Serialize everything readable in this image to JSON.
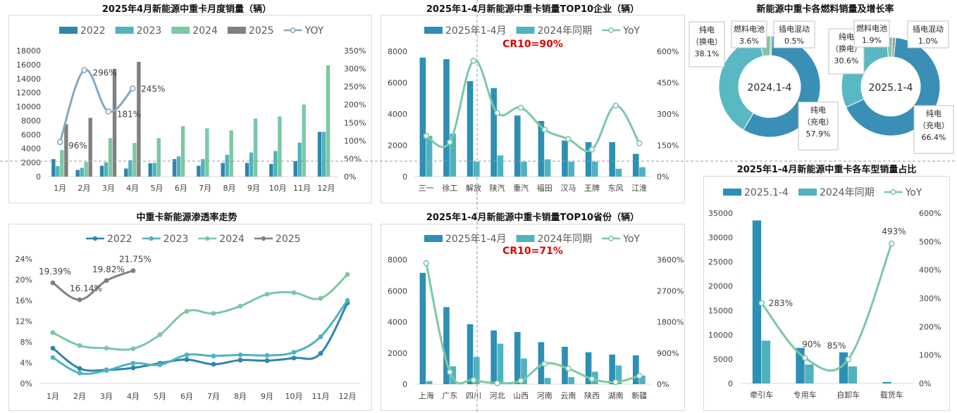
{
  "chart_data": [
    {
      "id": "monthly",
      "type": "bar",
      "title": "2025年4月新能源中重卡月度销量（辆）",
      "categories": [
        "1月",
        "2月",
        "3月",
        "4月",
        "5月",
        "6月",
        "7月",
        "8月",
        "9月",
        "10月",
        "11月",
        "12月"
      ],
      "series": [
        {
          "name": "2022",
          "color": "#2e86ab",
          "values": [
            2500,
            950,
            1550,
            1150,
            1900,
            2500,
            1550,
            1950,
            1950,
            1800,
            2200,
            6400
          ]
        },
        {
          "name": "2023",
          "color": "#4fb3bf",
          "values": [
            1500,
            1250,
            2050,
            2350,
            1950,
            2900,
            2500,
            3100,
            3450,
            3650,
            4850,
            6400
          ]
        },
        {
          "name": "2024",
          "color": "#7cc8a3",
          "values": [
            3800,
            2100,
            5500,
            4800,
            5500,
            7200,
            6900,
            6600,
            8300,
            8600,
            10300,
            15900
          ]
        },
        {
          "name": "2025",
          "color": "#808080",
          "values": [
            7500,
            8400,
            15400,
            16400,
            null,
            null,
            null,
            null,
            null,
            null,
            null,
            null
          ]
        }
      ],
      "yoy": {
        "name": "YOY",
        "color": "#82a9c4",
        "values": [
          96,
          296,
          181,
          245
        ],
        "labels": [
          "96%",
          "296%",
          "181%",
          "245%"
        ]
      },
      "ylim": [
        0,
        18000
      ],
      "yticks": [
        0,
        2000,
        4000,
        6000,
        8000,
        10000,
        12000,
        14000,
        16000,
        18000
      ],
      "y2lim": [
        0,
        350
      ],
      "y2ticks": [
        "0%",
        "50%",
        "100%",
        "150%",
        "200%",
        "250%",
        "300%",
        "350%"
      ],
      "legend": "top"
    },
    {
      "id": "top10-companies",
      "type": "bar",
      "title": "2025年1-4月新能源中重卡销量TOP10企业（辆）",
      "annotation": "CR10=90%",
      "categories": [
        "三一",
        "徐工",
        "解放",
        "陕汽",
        "重汽",
        "福田",
        "汉马",
        "王牌",
        "东风",
        "江淮"
      ],
      "series": [
        {
          "name": "2025年1-4月",
          "color": "#2e8fb5",
          "values": [
            7600,
            7500,
            6100,
            5650,
            3900,
            3550,
            2300,
            2200,
            2200,
            1450
          ]
        },
        {
          "name": "2024年同期",
          "color": "#4fb3bf",
          "values": [
            2600,
            2750,
            950,
            1350,
            950,
            1100,
            950,
            950,
            500,
            600
          ]
        }
      ],
      "yoy": {
        "name": "YoY",
        "color": "#7cc8a3",
        "values": [
          195,
          165,
          555,
          305,
          330,
          225,
          180,
          130,
          340,
          160
        ]
      },
      "ylim": [
        0,
        8000
      ],
      "yticks": [
        0,
        2000,
        4000,
        6000,
        8000
      ],
      "y2lim": [
        0,
        600
      ],
      "y2ticks": [
        "0%",
        "150%",
        "300%",
        "450%",
        "600%"
      ],
      "legend": "top"
    },
    {
      "id": "fuel-share",
      "type": "pie",
      "title": "新能源中重卡各燃料销量及增长率",
      "charts": [
        {
          "center": "2024.1-4",
          "slices": [
            {
              "name": "纯电（充电）",
              "line1": "纯电",
              "line2": "（充电）",
              "value": 57.9,
              "pct": "57.9%",
              "color": "#3a8fb7"
            },
            {
              "name": "纯电（换电）",
              "line1": "纯电",
              "line2": "（换电）",
              "value": 38.1,
              "pct": "38.1%",
              "color": "#5ab8c4"
            },
            {
              "name": "燃料电池",
              "line1": "燃料电池",
              "value": 3.6,
              "pct": "3.6%",
              "color": "#7cc8a3"
            },
            {
              "name": "插电混动",
              "line1": "插电混动",
              "value": 0.5,
              "pct": "0.5%",
              "color": "#999999"
            }
          ]
        },
        {
          "center": "2025.1-4",
          "slices": [
            {
              "name": "纯电（充电）",
              "line1": "纯电",
              "line2": "（充电）",
              "value": 66.4,
              "pct": "66.4%",
              "color": "#3a8fb7"
            },
            {
              "name": "纯电（换电）",
              "line1": "纯电",
              "line2": "（换电）",
              "value": 30.6,
              "pct": "30.6%",
              "color": "#5ab8c4"
            },
            {
              "name": "燃料电池",
              "line1": "燃料电池",
              "value": 1.9,
              "pct": "1.9%",
              "color": "#7cc8a3"
            },
            {
              "name": "插电混动",
              "line1": "插电混动",
              "value": 1.0,
              "pct": "1.0%",
              "color": "#999999"
            }
          ]
        }
      ]
    },
    {
      "id": "penetration",
      "type": "line",
      "title": "中重卡新能源渗透率走势",
      "categories": [
        "1月",
        "2月",
        "3月",
        "4月",
        "5月",
        "6月",
        "7月",
        "8月",
        "9月",
        "10月",
        "11月",
        "12月"
      ],
      "series": [
        {
          "name": "2022",
          "color": "#2e86ab",
          "values": [
            6.8,
            2.9,
            2.6,
            3.0,
            3.9,
            4.6,
            3.7,
            4.5,
            4.4,
            4.9,
            5.8,
            15.5
          ]
        },
        {
          "name": "2023",
          "color": "#4fb3bf",
          "values": [
            5.0,
            2.0,
            2.5,
            3.9,
            3.6,
            5.5,
            5.3,
            5.5,
            5.4,
            6.0,
            9.0,
            16.0
          ]
        },
        {
          "name": "2024",
          "color": "#7cc8a3",
          "values": [
            9.8,
            7.3,
            6.8,
            6.7,
            9.4,
            13.9,
            13.5,
            14.9,
            17.2,
            17.5,
            16.4,
            21.0
          ]
        },
        {
          "name": "2025",
          "color": "#808080",
          "values": [
            19.39,
            16.14,
            19.82,
            21.75,
            null,
            null,
            null,
            null,
            null,
            null,
            null,
            null
          ],
          "labels": [
            "19.39%",
            "16.14%",
            "19.82%",
            "21.75%"
          ]
        }
      ],
      "ylim": [
        0,
        24
      ],
      "yticks": [
        "0%",
        "4%",
        "8%",
        "12%",
        "16%",
        "20%",
        "24%"
      ],
      "legend": "top"
    },
    {
      "id": "top10-provinces",
      "type": "bar",
      "title": "2025年1-4月新能源中重卡销量TOP10省份（辆）",
      "annotation": "CR10=71%",
      "categories": [
        "上海",
        "广东",
        "四川",
        "河北",
        "山西",
        "河南",
        "云南",
        "陕西",
        "湖南",
        "新疆"
      ],
      "series": [
        {
          "name": "2025年1-4月",
          "color": "#2e8fb5",
          "values": [
            7150,
            4950,
            3850,
            3450,
            3350,
            2700,
            2400,
            2050,
            1900,
            1850
          ]
        },
        {
          "name": "2024年同期",
          "color": "#4fb3bf",
          "values": [
            200,
            1150,
            1750,
            2600,
            1650,
            400,
            450,
            800,
            1200,
            550
          ]
        }
      ],
      "yoy": {
        "name": "YoY",
        "color": "#7cc8a3",
        "values": [
          3500,
          350,
          120,
          30,
          100,
          590,
          450,
          150,
          60,
          240
        ]
      },
      "ylim": [
        0,
        8000
      ],
      "yticks": [
        0,
        2000,
        4000,
        6000,
        8000
      ],
      "y2lim": [
        0,
        3600
      ],
      "y2ticks": [
        "0%",
        "900%",
        "1800%",
        "2700%",
        "3600%"
      ],
      "legend": "top"
    },
    {
      "id": "vehicle-types",
      "type": "bar",
      "title": "2025年1-4月新能源中重卡各车型销量占比",
      "categories": [
        "牵引车",
        "专用车",
        "自卸车",
        "载货车"
      ],
      "series": [
        {
          "name": "2025.1-4",
          "color": "#2e8fb5",
          "values": [
            33500,
            7300,
            6400,
            300
          ]
        },
        {
          "name": "2024年同期",
          "color": "#4fb3bf",
          "values": [
            8800,
            3900,
            3500,
            0
          ]
        }
      ],
      "yoy": {
        "name": "YoY",
        "color": "#7cc8a3",
        "values": [
          283,
          90,
          85,
          493
        ],
        "labels": [
          "283%",
          "90%",
          "85%",
          "493%"
        ]
      },
      "ylim": [
        0,
        35000
      ],
      "yticks": [
        0,
        5000,
        10000,
        15000,
        20000,
        25000,
        30000,
        35000
      ],
      "y2lim": [
        0,
        600
      ],
      "y2ticks": [
        "0%",
        "100%",
        "200%",
        "300%",
        "400%",
        "500%",
        "600%"
      ],
      "legend": "top"
    }
  ]
}
